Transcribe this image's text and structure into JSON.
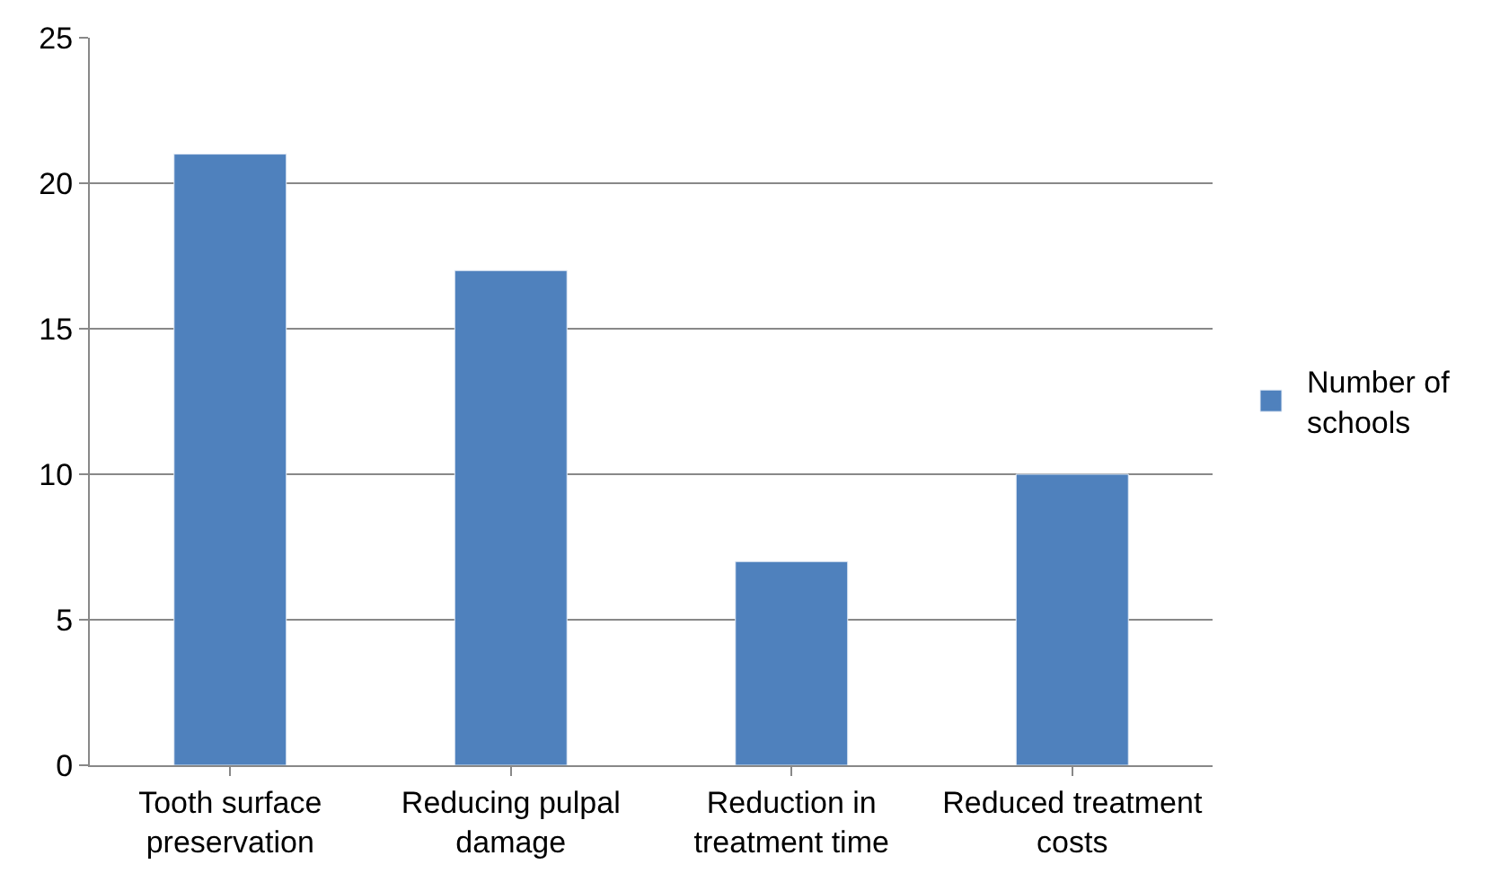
{
  "chart_data": {
    "type": "bar",
    "categories": [
      "Tooth surface preservation",
      "Reducing pulpal damage",
      "Reduction in treatment time",
      "Reduced treatment costs"
    ],
    "series": [
      {
        "name": "Number of schools",
        "color": "#4f81bd",
        "values": [
          21,
          17,
          7,
          10
        ]
      }
    ],
    "ylim": [
      0,
      25
    ],
    "yticks": [
      0,
      5,
      10,
      15,
      20,
      25
    ],
    "grid": "y",
    "legend": "right"
  }
}
